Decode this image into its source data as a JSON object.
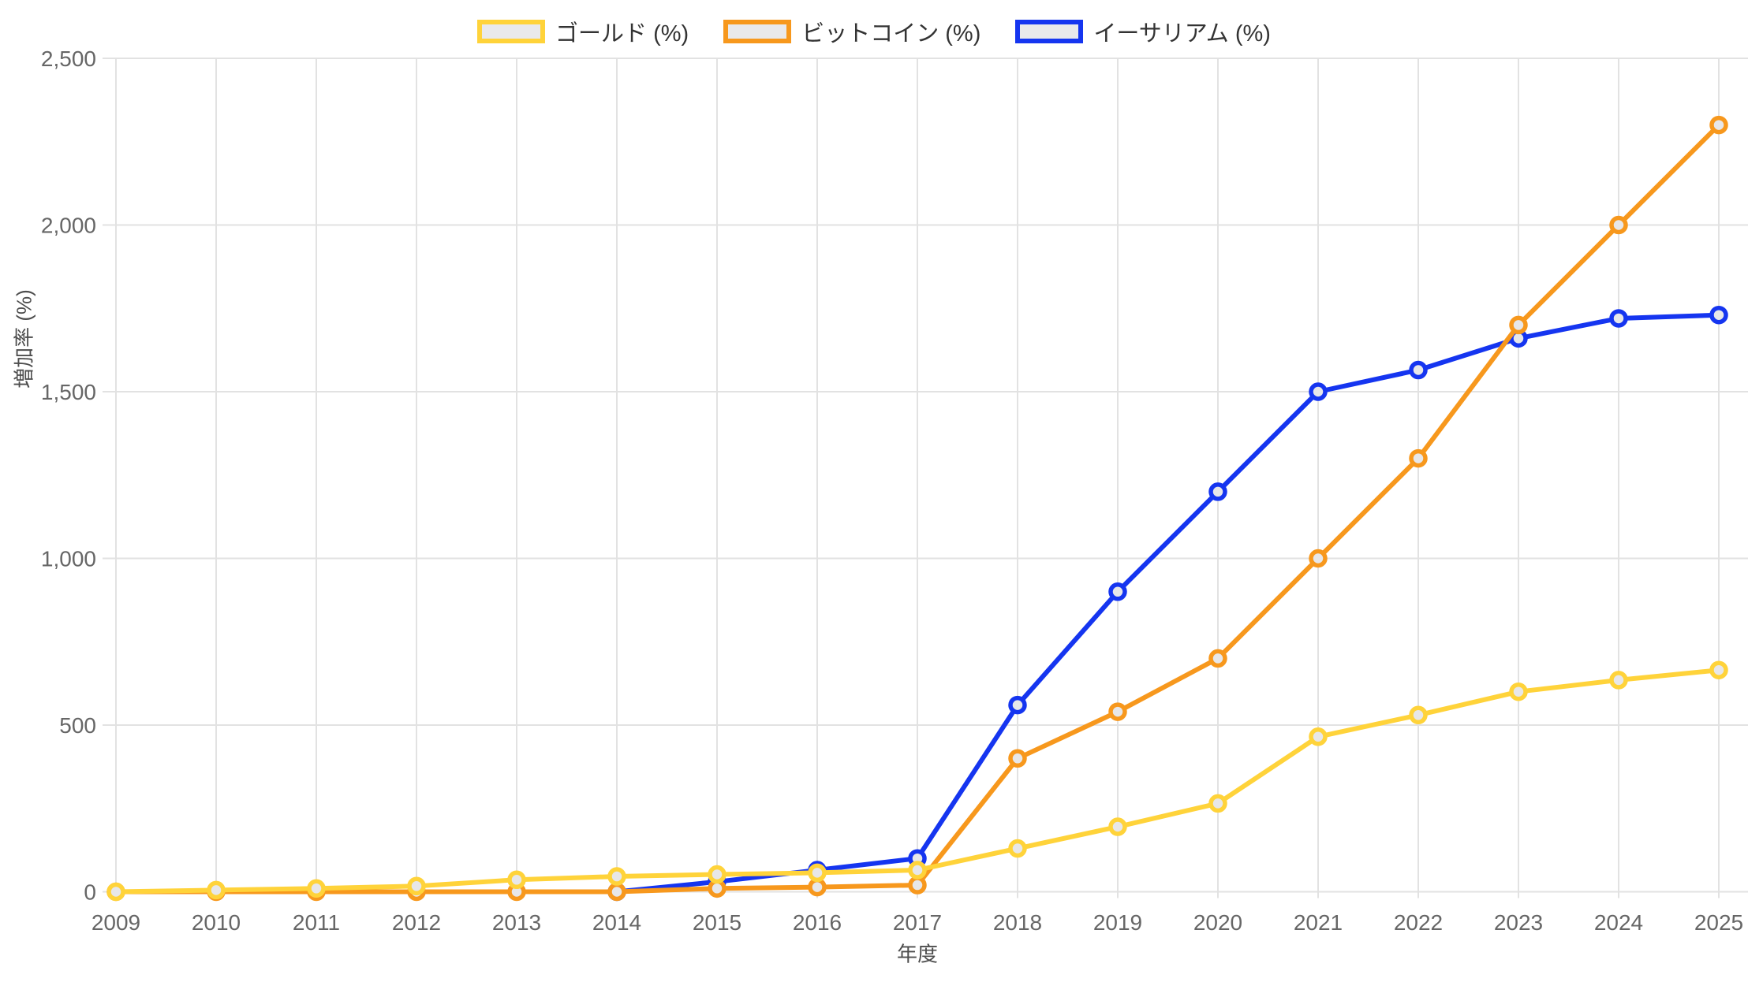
{
  "chart_data": {
    "type": "line",
    "title": "",
    "x": [
      "2009",
      "2010",
      "2011",
      "2012",
      "2013",
      "2014",
      "2015",
      "2016",
      "2017",
      "2018",
      "2019",
      "2020",
      "2021",
      "2022",
      "2023",
      "2024",
      "2025"
    ],
    "xlabel": "年度",
    "ylabel": "増加率 (%)",
    "ylim": [
      0,
      2500
    ],
    "y_tick_step": 500,
    "grid": true,
    "legend_position": "top",
    "series": [
      {
        "name": "ゴールド (%)",
        "color": "#FFD33A",
        "values": [
          0,
          5,
          10,
          17,
          36,
          46,
          52,
          57,
          65,
          130,
          195,
          265,
          465,
          530,
          600,
          635,
          665
        ]
      },
      {
        "name": "ビットコイン (%)",
        "color": "#F7981D",
        "values": [
          0,
          0,
          0,
          0,
          0,
          0,
          10,
          14,
          20,
          400,
          540,
          700,
          1000,
          1300,
          1700,
          2000,
          2300
        ]
      },
      {
        "name": "イーサリアム (%)",
        "color": "#1535F0",
        "values": [
          null,
          null,
          null,
          null,
          null,
          0,
          30,
          65,
          100,
          560,
          900,
          1200,
          1500,
          1565,
          1660,
          1720,
          1730
        ]
      }
    ]
  },
  "axes": {
    "y_tick_labels": [
      "0",
      "500",
      "1,000",
      "1,500",
      "2,000",
      "2,500"
    ],
    "x_tick_labels": [
      "2009",
      "2010",
      "2011",
      "2012",
      "2013",
      "2014",
      "2015",
      "2016",
      "2017",
      "2018",
      "2019",
      "2020",
      "2021",
      "2022",
      "2023",
      "2024",
      "2025"
    ]
  },
  "style": {
    "background": "#FFFFFF",
    "grid_color": "#E2E2E2",
    "tick_label_color": "#666666",
    "axis_title_color": "#4D4D4D",
    "legend_text_color": "#333333",
    "swatch_fill": "#E9E9EB",
    "marker_fill": "#E7E7E9"
  }
}
